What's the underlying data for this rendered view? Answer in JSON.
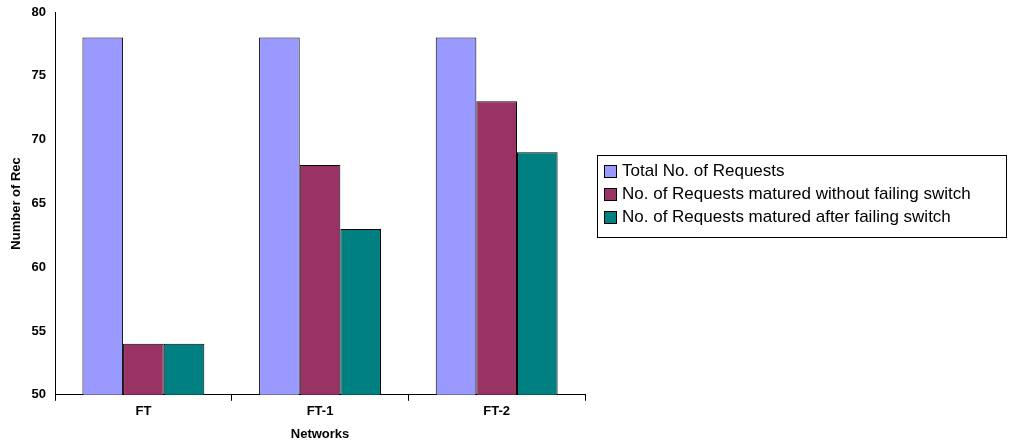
{
  "chart_data": {
    "type": "bar",
    "xlabel": "Networks",
    "ylabel": "Number of Rec",
    "categories": [
      "FT",
      "FT-1",
      "FT-2"
    ],
    "series": [
      {
        "name": "Total No. of  Requests",
        "color": "#9999ff",
        "values": [
          78,
          78,
          78
        ]
      },
      {
        "name": "No. of Requests matured without failing switch",
        "color": "#993366",
        "values": [
          54,
          68,
          73
        ]
      },
      {
        "name": "No. of Requests matured after failing switch",
        "color": "#008080",
        "values": [
          54,
          63,
          69
        ]
      }
    ],
    "ylim": [
      50,
      80
    ],
    "yticks": [
      50,
      55,
      60,
      65,
      70,
      75,
      80
    ],
    "grid": false,
    "legend": "right"
  }
}
